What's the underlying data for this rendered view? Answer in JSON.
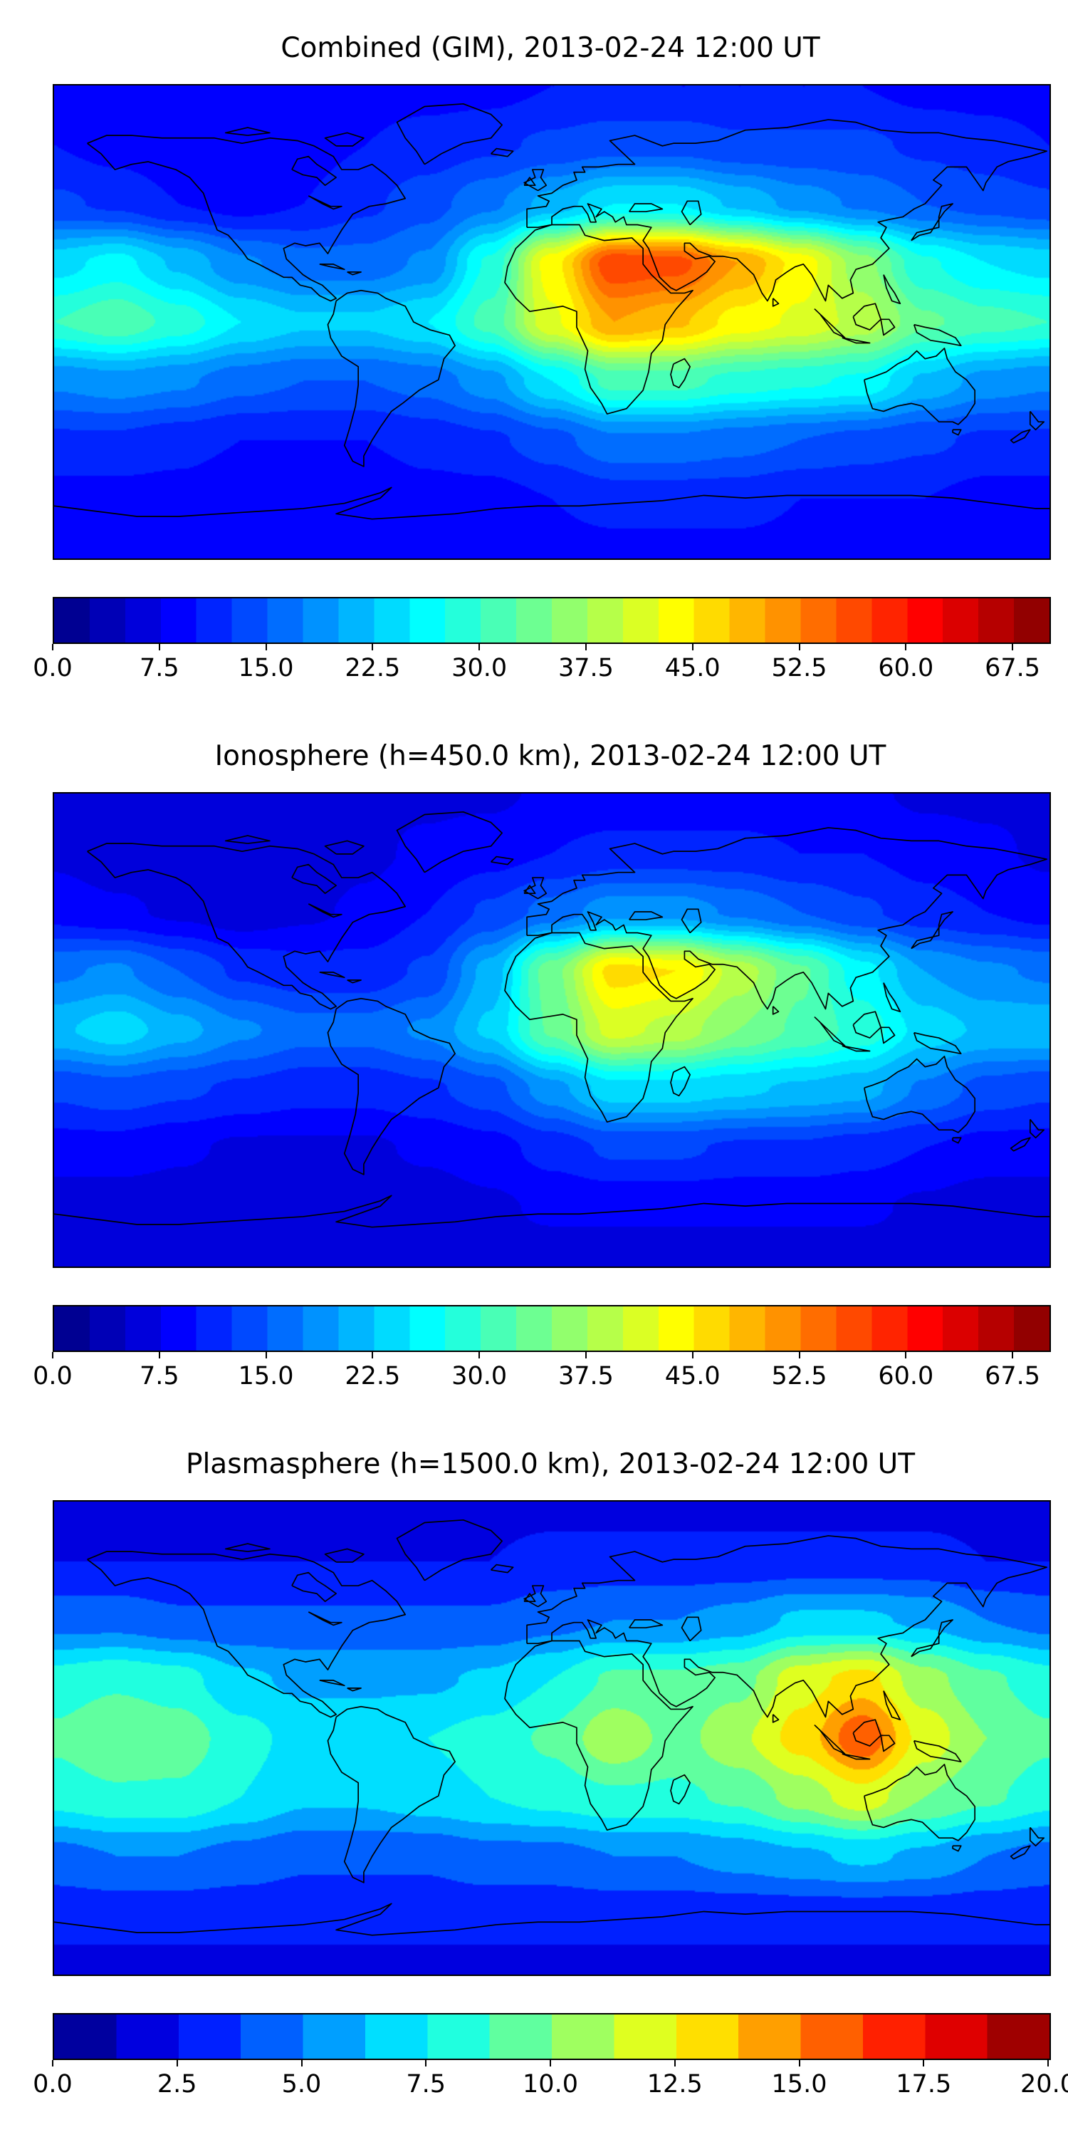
{
  "page": {
    "background": "#ffffff",
    "figure_type": "matplotlib-style stacked TEC maps"
  },
  "colors": {
    "coastline": "#000000",
    "frame": "#000000",
    "colormap_name": "jet"
  },
  "chart_data": [
    {
      "type": "heatmap",
      "title": "Combined (GIM), 2013-02-24 12:00 UT",
      "projection": "equirectangular world map with coastlines",
      "colormap": "jet",
      "vmin": 0,
      "vmax": 70,
      "level_step": 2.5,
      "lon": [
        -180,
        -157.5,
        -135,
        -112.5,
        -90,
        -67.5,
        -45,
        -22.5,
        0,
        22.5,
        45,
        67.5,
        90,
        112.5,
        135,
        157.5,
        180
      ],
      "lat": [
        90,
        67.5,
        45,
        22.5,
        0,
        -22.5,
        -45,
        -67.5,
        -90
      ],
      "values": [
        [
          9,
          9,
          9,
          9,
          9,
          9,
          9,
          9,
          10,
          10,
          10,
          10,
          10,
          10,
          9,
          9,
          9
        ],
        [
          10,
          9,
          8,
          8,
          9,
          10,
          11,
          12,
          13,
          14,
          14,
          13,
          13,
          13,
          12,
          11,
          10
        ],
        [
          13,
          12,
          10,
          9,
          10,
          12,
          14,
          17,
          21,
          25,
          25,
          22,
          19,
          17,
          15,
          14,
          13
        ],
        [
          24,
          26,
          22,
          18,
          16,
          16,
          18,
          28,
          44,
          57,
          56,
          50,
          44,
          36,
          28,
          25,
          24
        ],
        [
          30,
          32,
          29,
          25,
          23,
          23,
          25,
          31,
          42,
          50,
          48,
          44,
          42,
          39,
          33,
          31,
          30
        ],
        [
          18,
          19,
          18,
          16,
          15,
          15,
          16,
          19,
          25,
          31,
          31,
          29,
          28,
          27,
          22,
          19,
          18
        ],
        [
          12,
          12,
          11,
          10,
          10,
          10,
          11,
          12,
          14,
          17,
          17,
          16,
          15,
          14,
          13,
          12,
          12
        ],
        [
          9,
          9,
          9,
          8,
          8,
          8,
          9,
          9,
          10,
          11,
          11,
          11,
          10,
          10,
          10,
          9,
          9
        ],
        [
          8,
          8,
          8,
          8,
          8,
          8,
          8,
          8,
          9,
          9,
          9,
          9,
          9,
          9,
          8,
          8,
          8
        ]
      ],
      "colorbar": {
        "orientation": "horizontal",
        "tick_values": [
          0,
          7.5,
          15,
          22.5,
          30,
          37.5,
          45,
          52.5,
          60,
          67.5
        ],
        "tick_labels": [
          "0.0",
          "7.5",
          "15.0",
          "22.5",
          "30.0",
          "37.5",
          "45.0",
          "52.5",
          "60.0",
          "67.5"
        ]
      }
    },
    {
      "type": "heatmap",
      "title": "Ionosphere  (h=450.0 km), 2013-02-24 12:00 UT",
      "projection": "equirectangular world map with coastlines",
      "colormap": "jet",
      "vmin": 0,
      "vmax": 70,
      "level_step": 2.5,
      "lon": [
        -180,
        -157.5,
        -135,
        -112.5,
        -90,
        -67.5,
        -45,
        -22.5,
        0,
        22.5,
        45,
        67.5,
        90,
        112.5,
        135,
        157.5,
        180
      ],
      "lat": [
        90,
        67.5,
        45,
        22.5,
        0,
        -22.5,
        -45,
        -67.5,
        -90
      ],
      "values": [
        [
          7,
          7,
          7,
          7,
          7,
          7,
          7,
          7,
          8,
          8,
          8,
          8,
          8,
          8,
          7,
          7,
          7
        ],
        [
          7,
          6,
          6,
          6,
          6,
          7,
          8,
          9,
          10,
          11,
          11,
          11,
          10,
          10,
          9,
          8,
          7
        ],
        [
          9,
          8,
          7,
          6,
          7,
          8,
          10,
          13,
          16,
          19,
          19,
          17,
          15,
          13,
          11,
          10,
          9
        ],
        [
          17,
          18,
          15,
          12,
          11,
          11,
          13,
          21,
          34,
          46,
          45,
          39,
          33,
          26,
          20,
          18,
          17
        ],
        [
          22,
          24,
          21,
          18,
          16,
          16,
          18,
          23,
          33,
          41,
          39,
          35,
          32,
          29,
          24,
          22,
          22
        ],
        [
          13,
          14,
          13,
          12,
          11,
          11,
          12,
          14,
          19,
          24,
          24,
          23,
          22,
          21,
          17,
          14,
          13
        ],
        [
          9,
          9,
          8,
          7,
          7,
          7,
          8,
          9,
          11,
          13,
          13,
          12,
          12,
          11,
          10,
          9,
          9
        ],
        [
          6,
          6,
          6,
          6,
          6,
          6,
          6,
          7,
          8,
          8,
          8,
          8,
          8,
          8,
          7,
          6,
          6
        ],
        [
          6,
          6,
          6,
          6,
          6,
          6,
          6,
          6,
          6,
          6,
          6,
          6,
          6,
          6,
          6,
          6,
          6
        ]
      ],
      "colorbar": {
        "orientation": "horizontal",
        "tick_values": [
          0,
          7.5,
          15,
          22.5,
          30,
          37.5,
          45,
          52.5,
          60,
          67.5
        ],
        "tick_labels": [
          "0.0",
          "7.5",
          "15.0",
          "22.5",
          "30.0",
          "37.5",
          "45.0",
          "52.5",
          "60.0",
          "67.5"
        ]
      }
    },
    {
      "type": "heatmap",
      "title": "Plasmasphere (h=1500.0 km), 2013-02-24 12:00 UT",
      "projection": "equirectangular world map with coastlines",
      "colormap": "jet",
      "vmin": 0,
      "vmax": 20,
      "level_step": 1.25,
      "lon": [
        -180,
        -157.5,
        -135,
        -112.5,
        -90,
        -67.5,
        -45,
        -22.5,
        0,
        22.5,
        45,
        67.5,
        90,
        112.5,
        135,
        157.5,
        180
      ],
      "lat": [
        90,
        67.5,
        45,
        22.5,
        0,
        -22.5,
        -45,
        -67.5,
        -90
      ],
      "values": [
        [
          2,
          2,
          2,
          2,
          2,
          2,
          2,
          2,
          2,
          2,
          2,
          2,
          2,
          2,
          2,
          2,
          2
        ],
        [
          2.5,
          2.5,
          2.5,
          2.5,
          2.5,
          2.5,
          2.5,
          2.5,
          3,
          3,
          3,
          3,
          3,
          3,
          3,
          2.5,
          2.5
        ],
        [
          4.5,
          4.5,
          4,
          4,
          4,
          4,
          4,
          4,
          4.5,
          5,
          5,
          5.5,
          6.5,
          6.5,
          6,
          5,
          4.5
        ],
        [
          8,
          8.5,
          8,
          6.5,
          6,
          6,
          6,
          6.5,
          7.5,
          9,
          9,
          9.5,
          12,
          13,
          10.5,
          9,
          8
        ],
        [
          9,
          10,
          9.5,
          8,
          7,
          7,
          7.5,
          8,
          9,
          11,
          9.5,
          11,
          13,
          16,
          12,
          10,
          9
        ],
        [
          8,
          8.5,
          8.5,
          7.5,
          6.5,
          6.5,
          7,
          7.5,
          8,
          8.5,
          8.5,
          9,
          10.5,
          12,
          10,
          9,
          8
        ],
        [
          4.5,
          5,
          5,
          4.5,
          4,
          4,
          4,
          4.5,
          4.5,
          5,
          5,
          5.5,
          6,
          6.5,
          6,
          5,
          4.5
        ],
        [
          3,
          3,
          3,
          3,
          3,
          3,
          3,
          3,
          3,
          3,
          3,
          3,
          3,
          3,
          3,
          3,
          3
        ],
        [
          2,
          2,
          2,
          2,
          2,
          2,
          2,
          2,
          2,
          2,
          2,
          2,
          2,
          2,
          2,
          2,
          2
        ]
      ],
      "colorbar": {
        "orientation": "horizontal",
        "tick_values": [
          0,
          2.5,
          5,
          7.5,
          10,
          12.5,
          15,
          17.5,
          20
        ],
        "tick_labels": [
          "0.0",
          "2.5",
          "5.0",
          "7.5",
          "10.0",
          "12.5",
          "15.0",
          "17.5",
          "20.0"
        ]
      }
    }
  ]
}
